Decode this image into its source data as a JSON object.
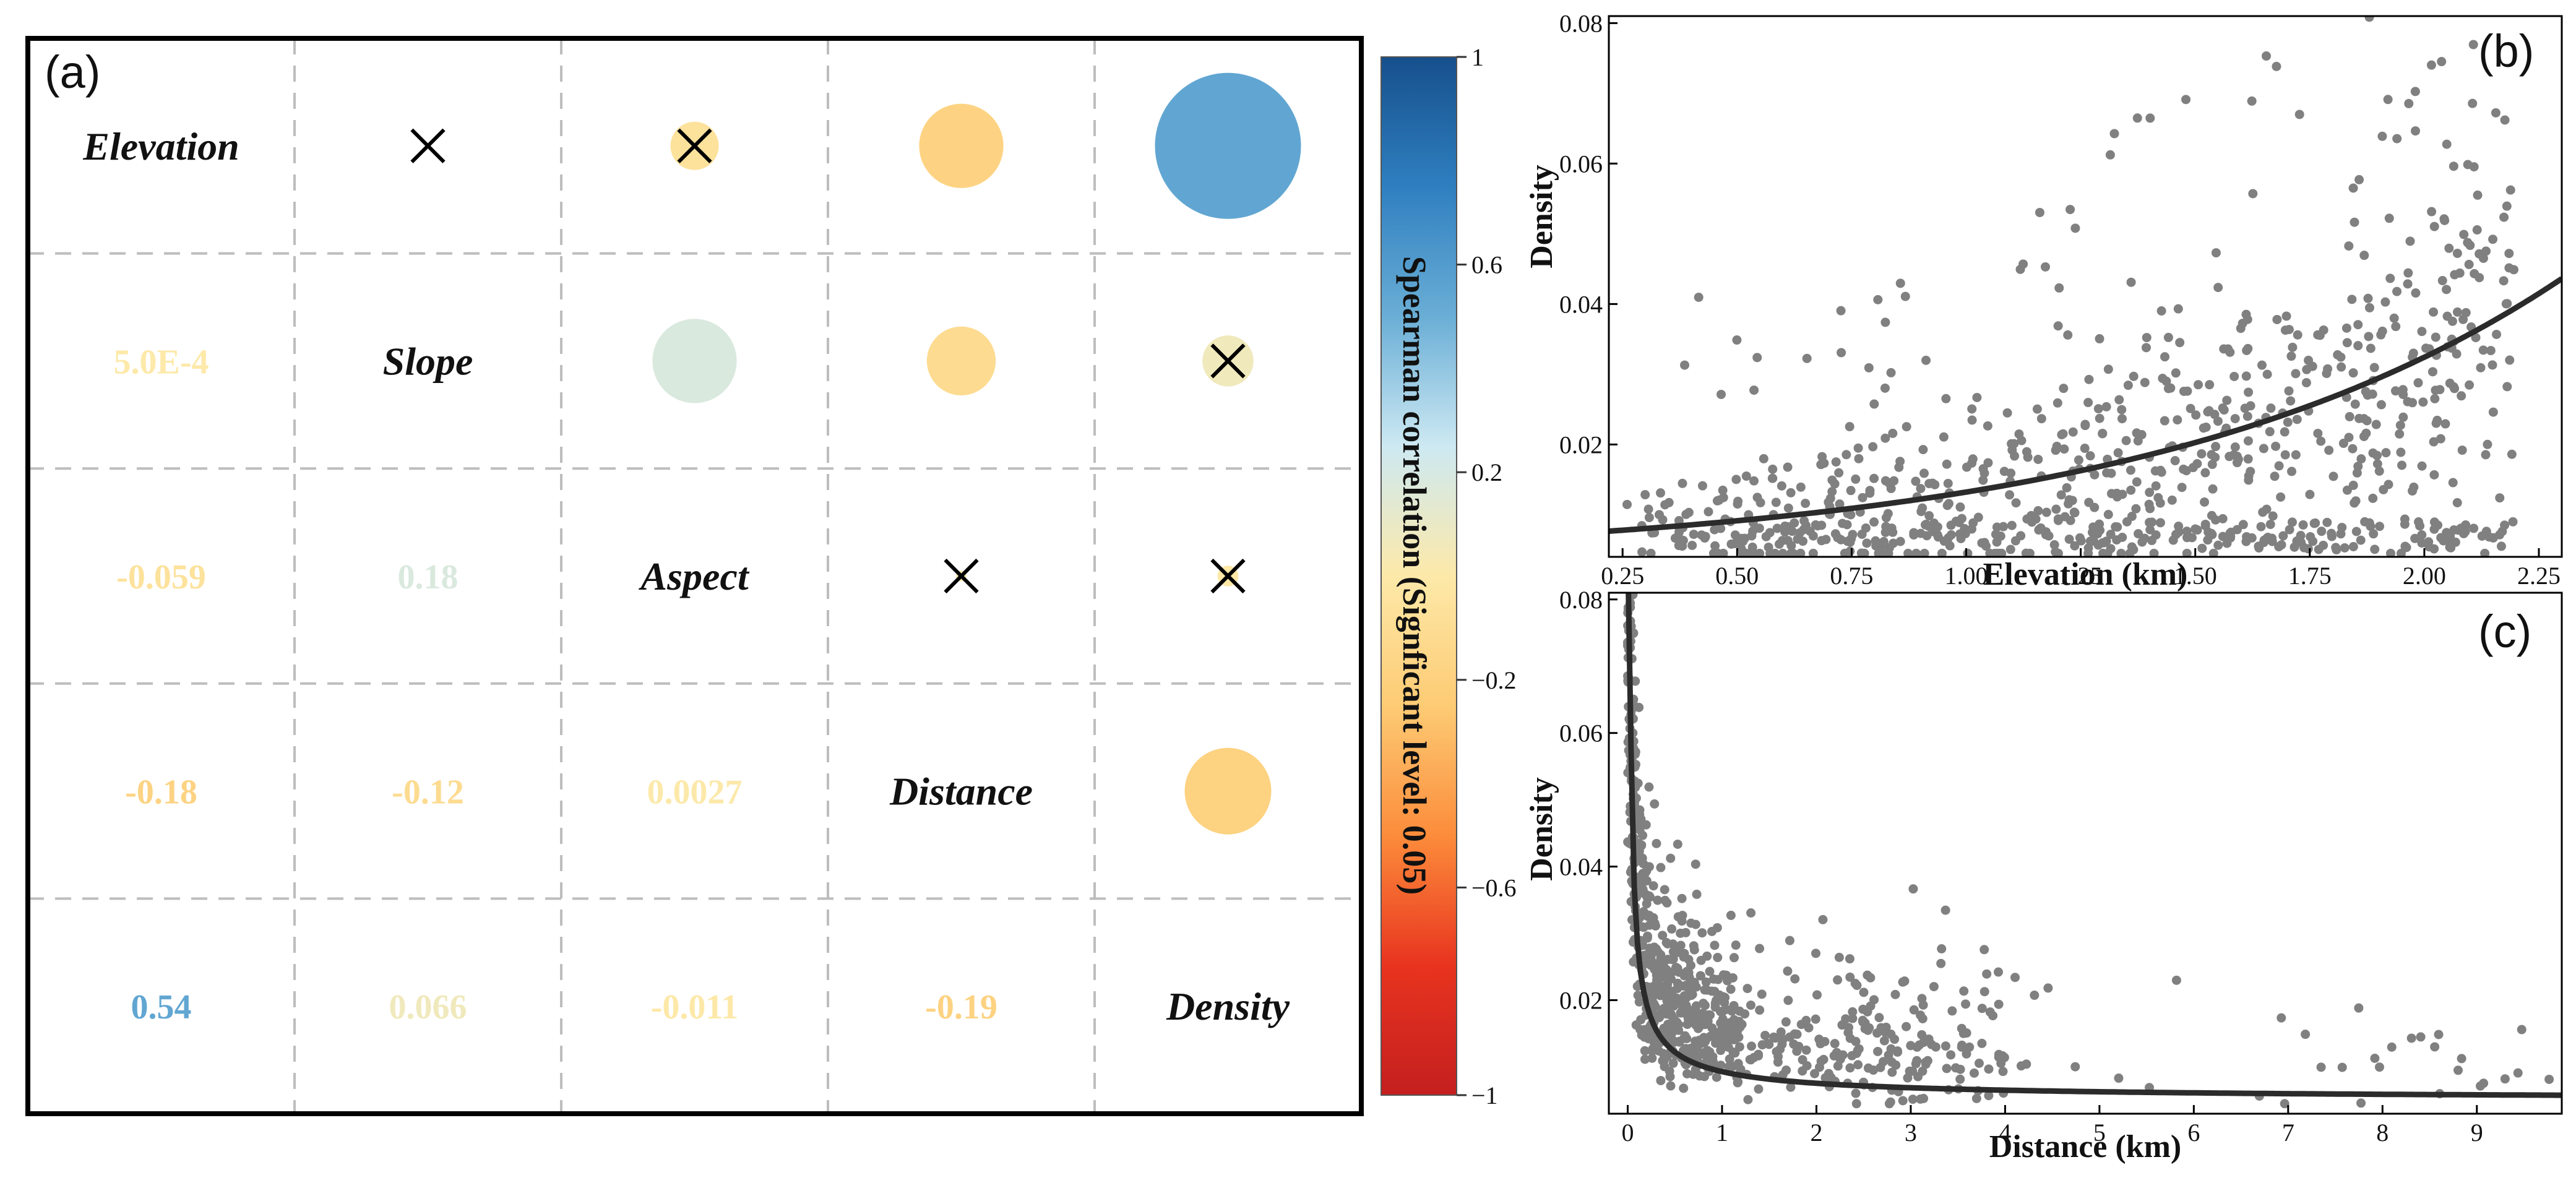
{
  "chart_data": [
    {
      "type": "correlation-matrix",
      "panel_label": "(a)",
      "variables": [
        "Elevation",
        "Slope",
        "Aspect",
        "Distance",
        "Density"
      ],
      "lower_labels": [
        {
          "row": 1,
          "col": 0,
          "label": "5.0E-4",
          "value": 0.0005
        },
        {
          "row": 2,
          "col": 0,
          "label": "-0.059",
          "value": -0.059
        },
        {
          "row": 2,
          "col": 1,
          "label": "0.18",
          "value": 0.18
        },
        {
          "row": 3,
          "col": 0,
          "label": "-0.18",
          "value": -0.18
        },
        {
          "row": 3,
          "col": 1,
          "label": "-0.12",
          "value": -0.12
        },
        {
          "row": 3,
          "col": 2,
          "label": "0.0027",
          "value": 0.0027
        },
        {
          "row": 4,
          "col": 0,
          "label": "0.54",
          "value": 0.54
        },
        {
          "row": 4,
          "col": 1,
          "label": "0.066",
          "value": 0.066
        },
        {
          "row": 4,
          "col": 2,
          "label": "-0.011",
          "value": -0.011
        },
        {
          "row": 4,
          "col": 3,
          "label": "-0.19",
          "value": -0.19
        }
      ],
      "upper_cells": [
        {
          "row": 0,
          "col": 1,
          "value": 0.0005,
          "significant": false
        },
        {
          "row": 0,
          "col": 2,
          "value": -0.059,
          "significant": false
        },
        {
          "row": 0,
          "col": 3,
          "value": -0.18,
          "significant": true
        },
        {
          "row": 0,
          "col": 4,
          "value": 0.54,
          "significant": true
        },
        {
          "row": 1,
          "col": 2,
          "value": 0.18,
          "significant": true
        },
        {
          "row": 1,
          "col": 3,
          "value": -0.12,
          "significant": true
        },
        {
          "row": 1,
          "col": 4,
          "value": 0.066,
          "significant": false
        },
        {
          "row": 2,
          "col": 3,
          "value": 0.0027,
          "significant": false
        },
        {
          "row": 2,
          "col": 4,
          "value": -0.011,
          "significant": false
        },
        {
          "row": 3,
          "col": 4,
          "value": -0.19,
          "significant": true
        }
      ],
      "colorbar": {
        "title": "Spearman correlation (Signficant level: 0.05)",
        "range": [
          -1,
          1
        ],
        "ticks": [
          1,
          0.6,
          0.2,
          -0.2,
          -0.6,
          -1
        ],
        "tick_labels": [
          "1",
          "0.6",
          "0.2",
          "−0.2",
          "−0.6",
          "−1"
        ],
        "stops": [
          "#16508c",
          "#2f7fc0",
          "#6aaed6",
          "#cde9f2",
          "#fde9a9",
          "#fdcb74",
          "#fc8c3b",
          "#e8341f",
          "#c41f1f"
        ]
      },
      "colors": {
        "not_significant_marker": "#000000"
      }
    },
    {
      "type": "scatter",
      "panel_label": "(b)",
      "xlabel": "Elevation (km)",
      "ylabel": "Density",
      "xlim": [
        0.22,
        2.3
      ],
      "ylim": [
        0.004,
        0.081
      ],
      "x_ticks": [
        0.25,
        0.5,
        0.75,
        1.0,
        1.25,
        1.5,
        1.75,
        2.0,
        2.25
      ],
      "x_tick_labels": [
        "0.25",
        "0.50",
        "0.75",
        "1.00",
        "1.25",
        "1.50",
        "1.75",
        "2.00",
        "2.25"
      ],
      "y_ticks": [
        0.02,
        0.04,
        0.06,
        0.08
      ],
      "y_tick_labels": [
        "0.02",
        "0.04",
        "0.06",
        "0.08"
      ],
      "n_points": 900,
      "point_color": "#808080",
      "fit": {
        "model": "exponential",
        "a": 0.00327,
        "b": 1.09,
        "c": 0.0035
      }
    },
    {
      "type": "scatter",
      "panel_label": "(c)",
      "xlabel": "Distance (km)",
      "ylabel": "Density",
      "xlim": [
        -0.2,
        9.9
      ],
      "ylim": [
        0.003,
        0.081
      ],
      "x_ticks": [
        0,
        1,
        2,
        3,
        4,
        5,
        6,
        7,
        8,
        9
      ],
      "x_tick_labels": [
        "0",
        "1",
        "2",
        "3",
        "4",
        "5",
        "6",
        "7",
        "8",
        "9"
      ],
      "y_ticks": [
        0.02,
        0.04,
        0.06,
        0.08
      ],
      "y_tick_labels": [
        "0.02",
        "0.04",
        "0.06",
        "0.08"
      ],
      "n_points": 900,
      "point_color": "#808080",
      "fit": {
        "model": "power",
        "a": 0.0043,
        "b": -0.75,
        "c": 0.005
      }
    }
  ]
}
